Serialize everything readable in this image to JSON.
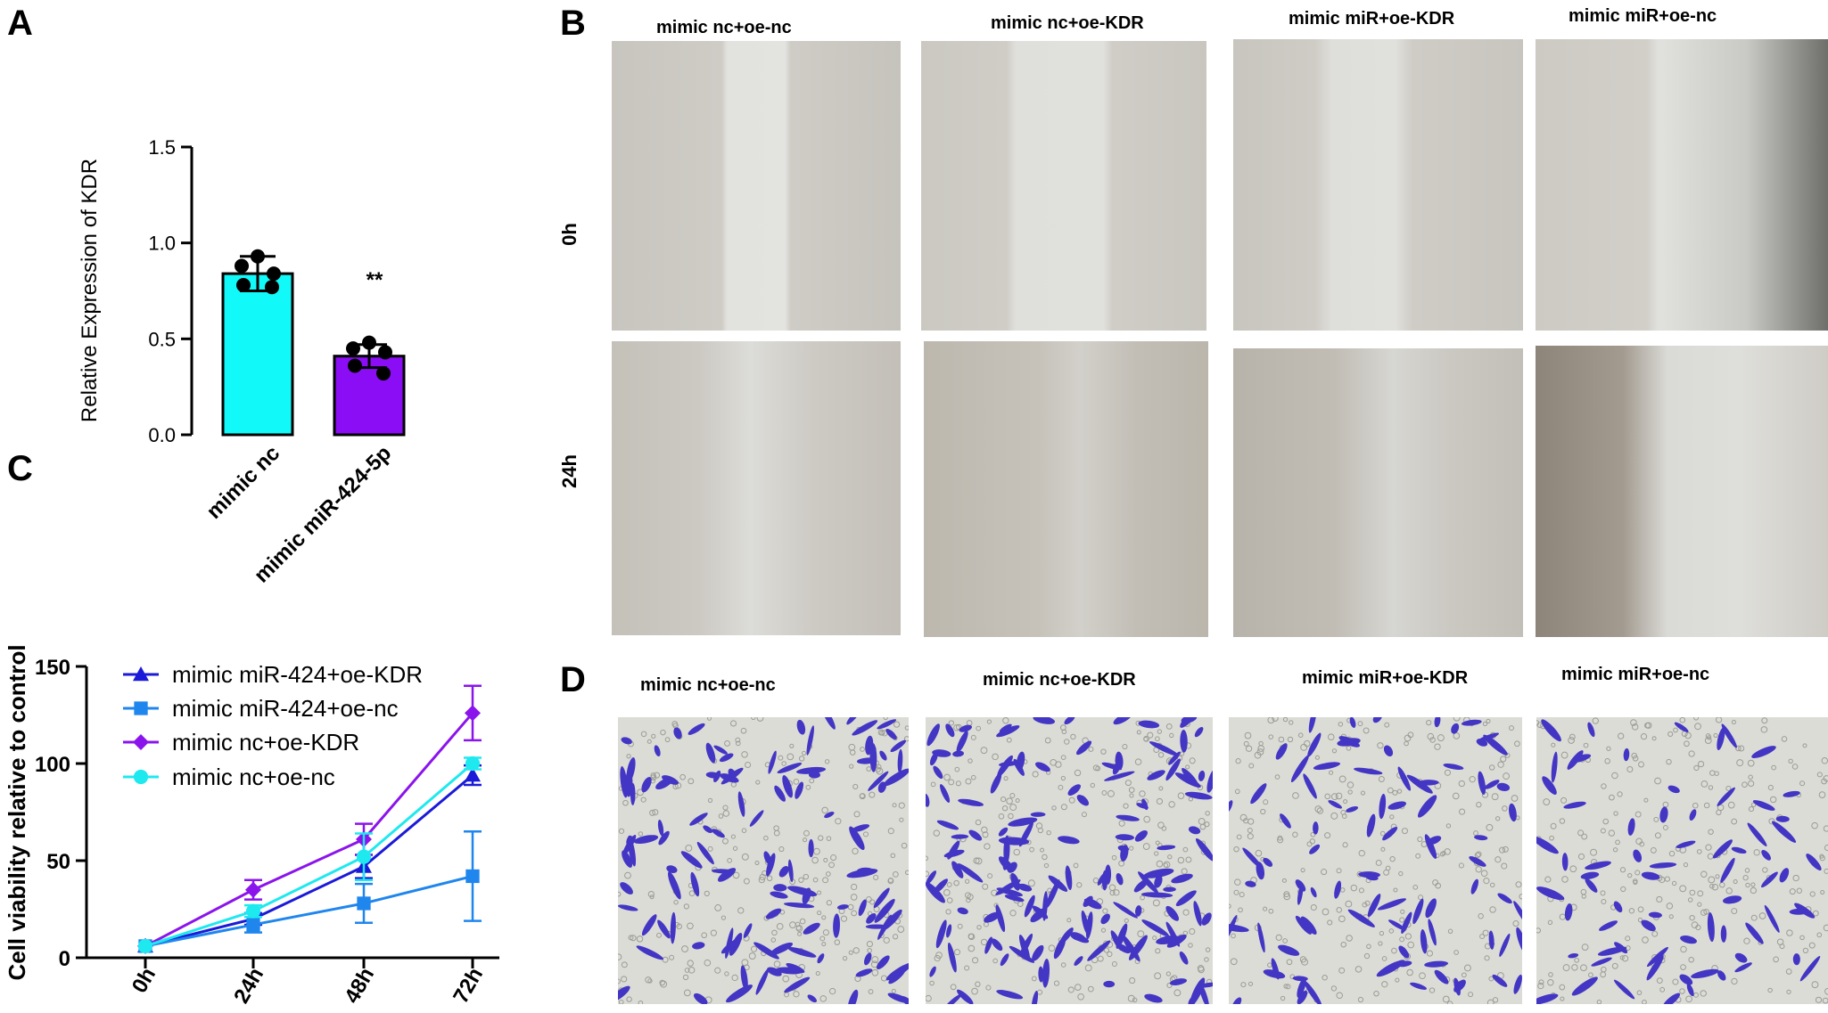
{
  "panels": {
    "a": "A",
    "b": "B",
    "c": "C",
    "d": "D"
  },
  "chart_data": [
    {
      "panel": "A",
      "type": "bar",
      "categories": [
        "mimic nc",
        "mimic miR-424-5p"
      ],
      "values": [
        0.84,
        0.41
      ],
      "errors": [
        0.09,
        0.06
      ],
      "points": [
        [
          0.93,
          0.88,
          0.84,
          0.78,
          0.77
        ],
        [
          0.48,
          0.45,
          0.43,
          0.36,
          0.32
        ]
      ],
      "colors": [
        "#12f9f9",
        "#8b0df5"
      ],
      "ylabel": "Relative Expression of  KDR",
      "ylim": [
        0,
        1.5
      ],
      "yticks": [
        "0.0",
        "0.5",
        "1.0",
        "1.5"
      ],
      "annotation": "**"
    },
    {
      "panel": "C",
      "type": "line",
      "categories": [
        "0h",
        "24h",
        "48h",
        "72h"
      ],
      "ylabel": "Cell viability relative to control",
      "ylim": [
        0,
        150
      ],
      "yticks": [
        "0",
        "50",
        "100",
        "150"
      ],
      "legend": "top-left",
      "series": [
        {
          "name": "mimic miR-424+oe-KDR",
          "marker": "triangle",
          "color": "#1a1ad8",
          "values": [
            6,
            20,
            47,
            94
          ],
          "errors": [
            0,
            3,
            6,
            5
          ]
        },
        {
          "name": "mimic miR-424+oe-nc",
          "marker": "square",
          "color": "#1f86ee",
          "values": [
            6,
            17,
            28,
            42
          ],
          "errors": [
            0,
            4,
            10,
            23
          ]
        },
        {
          "name": "mimic nc+oe-KDR",
          "marker": "diamond",
          "color": "#8b14ec",
          "values": [
            6,
            35,
            61,
            126
          ],
          "errors": [
            0,
            5,
            8,
            14
          ]
        },
        {
          "name": "mimic nc+oe-nc",
          "marker": "circle",
          "color": "#1ee9ef",
          "values": [
            6,
            24,
            52,
            100
          ],
          "errors": [
            0,
            3,
            12,
            3
          ]
        }
      ]
    }
  ],
  "panel_b": {
    "conditions": [
      "mimic nc+oe-nc",
      "mimic nc+oe-KDR",
      "mimic miR+oe-KDR",
      "mimic miR+oe-nc"
    ],
    "rows": [
      "0h",
      "24h"
    ]
  },
  "panel_d": {
    "conditions": [
      "mimic nc+oe-nc",
      "mimic nc+oe-KDR",
      "mimic miR+oe-KDR",
      "mimic miR+oe-nc"
    ]
  }
}
